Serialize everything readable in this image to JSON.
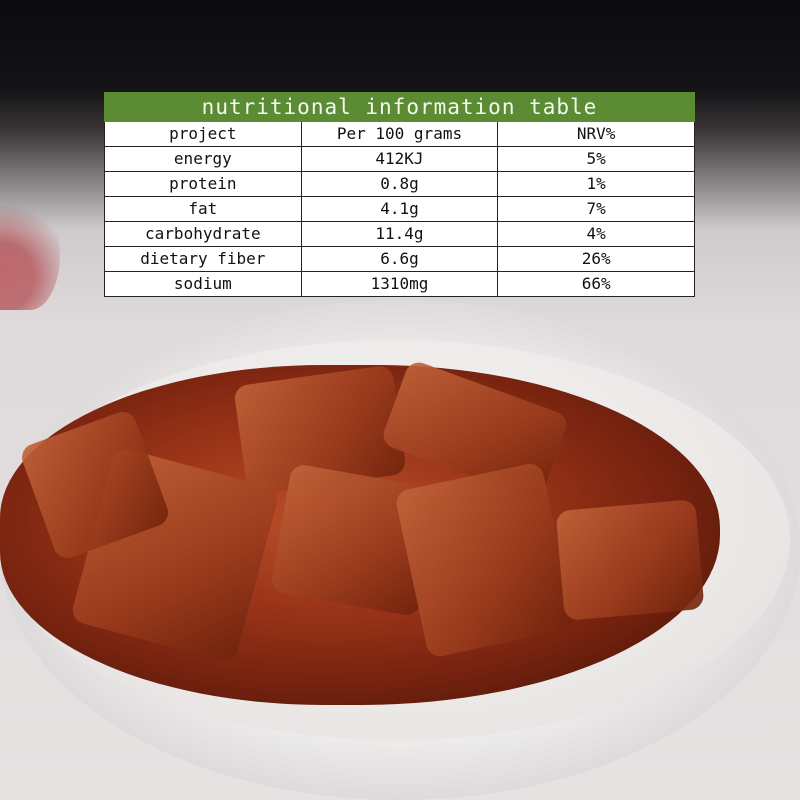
{
  "table": {
    "title": "nutritional information table",
    "header": [
      "project",
      "Per 100 grams",
      "NRV%"
    ],
    "rows": [
      [
        "energy",
        "412KJ",
        "5%"
      ],
      [
        "protein",
        "0.8g",
        "1%"
      ],
      [
        "fat",
        "4.1g",
        "7%"
      ],
      [
        "carbohydrate",
        "11.4g",
        "4%"
      ],
      [
        "dietary fiber",
        "6.6g",
        "26%"
      ],
      [
        "sodium",
        "1310mg",
        "66%"
      ]
    ],
    "title_color": "#5b8c34"
  }
}
